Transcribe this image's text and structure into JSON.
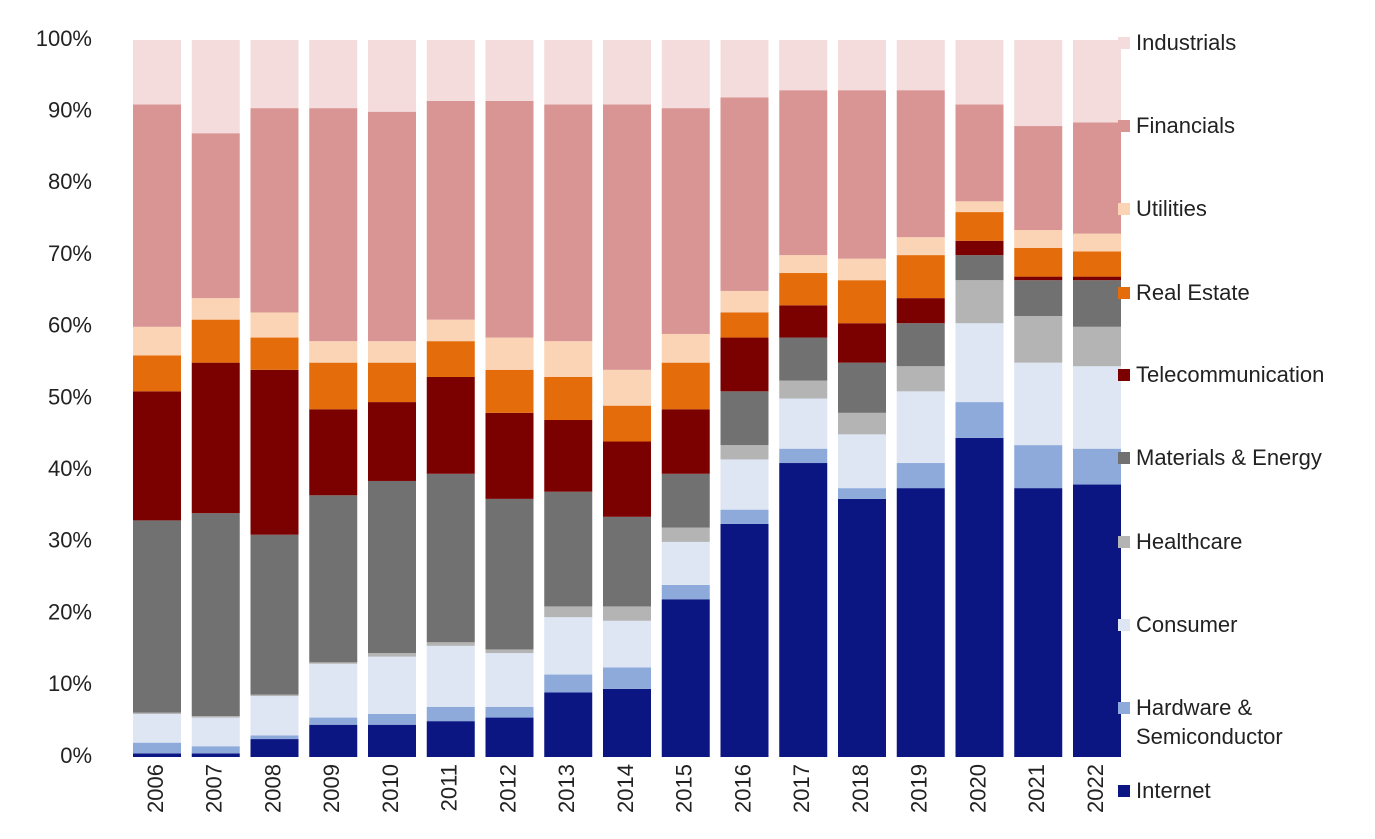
{
  "chart_data": {
    "type": "stacked_bar",
    "categories": [
      "2006",
      "2007",
      "2008",
      "2009",
      "2010",
      "2011",
      "2012",
      "2013",
      "2014",
      "2015",
      "2016",
      "2017",
      "2018",
      "2019",
      "2020",
      "2021",
      "2022"
    ],
    "ylim": [
      0,
      100
    ],
    "yticks": [
      {
        "value": 0,
        "label": "0%"
      },
      {
        "value": 10,
        "label": "10%"
      },
      {
        "value": 20,
        "label": "20%"
      },
      {
        "value": 30,
        "label": "30%"
      },
      {
        "value": 40,
        "label": "40%"
      },
      {
        "value": 50,
        "label": "50%"
      },
      {
        "value": 60,
        "label": "60%"
      },
      {
        "value": 70,
        "label": "70%"
      },
      {
        "value": 80,
        "label": "80%"
      },
      {
        "value": 90,
        "label": "90%"
      },
      {
        "value": 100,
        "label": "100%"
      }
    ],
    "grid": false,
    "legend": "right",
    "series": [
      {
        "name": "Internet",
        "color": "#0b1683",
        "values": [
          0.5,
          0.5,
          2.5,
          4.5,
          4.5,
          5,
          5.5,
          9,
          9.5,
          22,
          32.5,
          41,
          36,
          37.5,
          44.5,
          37.5,
          38
        ]
      },
      {
        "name": "Hardware & Semiconductor",
        "color": "#8eaadb",
        "values": [
          1.5,
          1,
          0.5,
          1,
          1.5,
          2,
          1.5,
          2.5,
          3,
          2,
          2,
          2,
          1.5,
          3.5,
          5,
          6,
          5
        ]
      },
      {
        "name": "Consumer",
        "color": "#dde6f2",
        "values": [
          4,
          4,
          5.5,
          7.5,
          8,
          8.5,
          7.5,
          8,
          6.5,
          6,
          7,
          7,
          7.5,
          10,
          11,
          11.5,
          11.5
        ]
      },
      {
        "name": "Healthcare",
        "color": "#b4b4b4",
        "values": [
          0.2,
          0.2,
          0.2,
          0.2,
          0.5,
          0.5,
          0.5,
          1.5,
          2,
          2,
          2,
          2.5,
          3,
          3.5,
          6,
          6.5,
          5.5
        ]
      },
      {
        "name": "Materials & Energy",
        "color": "#717171",
        "values": [
          26.8,
          28.3,
          22.3,
          23.3,
          24,
          23.5,
          21,
          16,
          12.5,
          7.5,
          7.5,
          6,
          7,
          6,
          3.5,
          5,
          6.5
        ]
      },
      {
        "name": "Telecommunication",
        "color": "#7b0000",
        "values": [
          18,
          21,
          23,
          12,
          11,
          13.5,
          12,
          10,
          10.5,
          9,
          7.5,
          4.5,
          5.5,
          3.5,
          2,
          0.5,
          0.5
        ]
      },
      {
        "name": "Real Estate",
        "color": "#e46c0a",
        "values": [
          5,
          6,
          4.5,
          6.5,
          5.5,
          5,
          6,
          6,
          5,
          6.5,
          3.5,
          4.5,
          6,
          6,
          4,
          4,
          3.5
        ]
      },
      {
        "name": "Utilities",
        "color": "#fbd3b5",
        "values": [
          4,
          3,
          3.5,
          3,
          3,
          3,
          4.5,
          5,
          5,
          4,
          3,
          2.5,
          3,
          2.5,
          1.5,
          2.5,
          2.5
        ]
      },
      {
        "name": "Financials",
        "color": "#d99594",
        "values": [
          31,
          23,
          28.5,
          32.5,
          32,
          30.5,
          33,
          33,
          37,
          31.5,
          27,
          23,
          23.5,
          20.5,
          13.5,
          14.5,
          15.5
        ]
      },
      {
        "name": "Industrials",
        "color": "#f4dcdc",
        "values": [
          9,
          13,
          9.5,
          9.5,
          10,
          8.5,
          8.5,
          9,
          9,
          9.5,
          8,
          7,
          7,
          7,
          9,
          12,
          11.5
        ]
      }
    ]
  }
}
